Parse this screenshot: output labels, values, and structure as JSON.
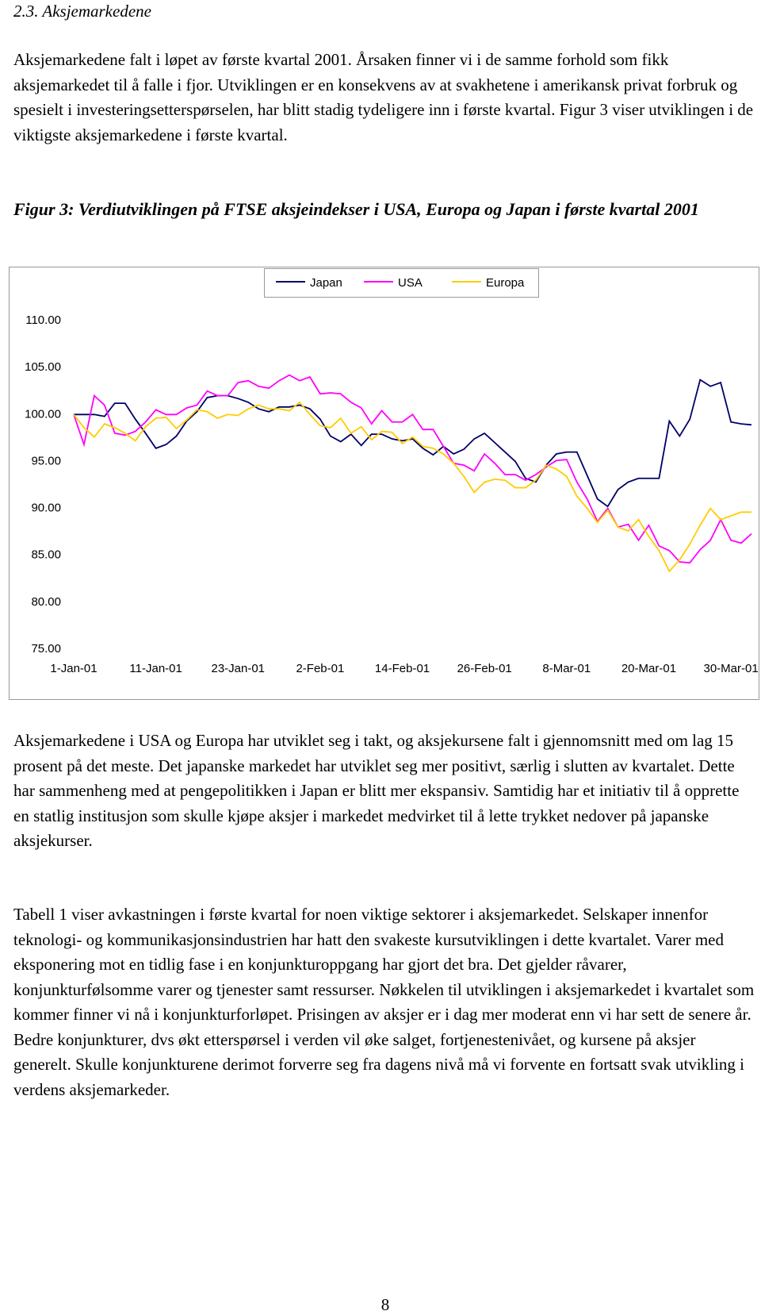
{
  "heading": "2.3. Aksjemarkedene",
  "paragraphs": [
    "Aksjemarkedene falt i løpet av første kvartal 2001. Årsaken finner vi i de samme forhold som fikk aksjemarkedet til å falle i fjor. Utviklingen er en konsekvens av at svakhetene i amerikansk privat forbruk og spesielt i investeringsetterspørselen, har blitt stadig tydeligere inn i første kvartal. Figur 3 viser utviklingen i de viktigste aksjemarkedene i første kvartal.",
    "Aksjemarkedene i USA og Europa har utviklet seg i takt, og aksjekursene falt i gjennomsnitt med om lag 15 prosent på det meste. Det japanske markedet har utviklet seg mer positivt, særlig i slutten av kvartalet. Dette har sammenheng med at pengepolitikken i Japan er blitt mer ekspansiv. Samtidig har et initiativ til å opprette en statlig institusjon som skulle kjøpe aksjer i markedet medvirket til å lette trykket nedover på japanske aksjekurser.",
    "Tabell 1 viser avkastningen i første kvartal for noen viktige sektorer i aksjemarkedet. Selskaper innenfor teknologi- og kommunikasjonsindustrien har hatt den svakeste kursutviklingen i dette kvartalet. Varer med eksponering mot en tidlig fase i en konjunkturoppgang har gjort det bra. Det gjelder råvarer, konjunkturfølsomme varer og tjenester samt ressurser. Nøkkelen til utviklingen i aksjemarkedet i kvartalet som kommer finner vi nå i konjunkturforløpet. Prisingen av aksjer er i dag mer moderat enn vi har sett de senere år. Bedre konjunkturer, dvs økt etterspørsel i verden vil øke salget, fortjenestenivået, og kursene på aksjer generelt. Skulle konjunkturene derimot forverre seg fra dagens nivå må vi forvente en fortsatt svak utvikling i verdens aksjemarkeder."
  ],
  "figure_caption": "Figur 3: Verdiutviklingen på FTSE aksjeindekser i USA, Europa og Japan i første kvartal 2001",
  "chart_data": {
    "type": "line",
    "categories": [
      "1-Jan-01",
      null,
      null,
      null,
      null,
      null,
      null,
      null,
      "11-Jan-01",
      null,
      null,
      null,
      null,
      null,
      null,
      null,
      "23-Jan-01",
      null,
      null,
      null,
      null,
      null,
      null,
      null,
      "2-Feb-01",
      null,
      null,
      null,
      null,
      null,
      null,
      null,
      "14-Feb-01",
      null,
      null,
      null,
      null,
      null,
      null,
      null,
      "26-Feb-01",
      null,
      null,
      null,
      null,
      null,
      null,
      null,
      "8-Mar-01",
      null,
      null,
      null,
      null,
      null,
      null,
      null,
      "20-Mar-01",
      null,
      null,
      null,
      null,
      null,
      null,
      null,
      "30-Mar-01",
      null,
      null
    ],
    "series": [
      {
        "name": "Japan",
        "color": "#000066",
        "values": [
          100,
          100,
          100,
          99.8,
          101.2,
          101.2,
          99.5,
          98,
          96.4,
          96.8,
          97.7,
          99.3,
          100.3,
          101.8,
          102,
          102,
          101.7,
          101.3,
          100.6,
          100.3,
          100.8,
          100.8,
          101,
          100.6,
          99.5,
          97.7,
          97.1,
          97.9,
          96.7,
          97.9,
          97.9,
          97.4,
          97.2,
          97.4,
          96.4,
          95.7,
          96.6,
          95.8,
          96.3,
          97.4,
          98,
          97,
          96,
          95,
          93.2,
          92.8,
          94.6,
          95.8,
          96,
          96,
          93.5,
          91,
          90.2,
          92,
          92.8,
          93.2,
          93.2,
          93.2,
          99.3,
          97.7,
          99.5,
          103.7,
          103,
          103.4,
          99.2,
          99,
          98.9
        ]
      },
      {
        "name": "USA",
        "color": "#ff00ff",
        "values": [
          100,
          96.8,
          102,
          101,
          98,
          97.8,
          98.2,
          99.2,
          100.5,
          100,
          100,
          100.7,
          101,
          102.5,
          102,
          102,
          103.4,
          103.6,
          103,
          102.8,
          103.6,
          104.2,
          103.6,
          104,
          102.2,
          102.3,
          102.2,
          101.3,
          100.7,
          99,
          100.4,
          99.2,
          99.2,
          100,
          98.4,
          98.4,
          96.6,
          94.8,
          94.6,
          94,
          95.8,
          94.8,
          93.6,
          93.6,
          93,
          93.6,
          94.4,
          95.1,
          95.2,
          92.8,
          91,
          88.6,
          90,
          88,
          88.3,
          86.6,
          88.2,
          86,
          85.5,
          84.3,
          84.2,
          85.6,
          86.6,
          88.8,
          86.6,
          86.3,
          87.3
        ]
      },
      {
        "name": "Europa",
        "color": "#ffcc00",
        "values": [
          100,
          98.6,
          97.6,
          99,
          98.6,
          98,
          97.2,
          98.7,
          99.6,
          99.7,
          98.5,
          99.4,
          100.5,
          100.3,
          99.6,
          100,
          99.9,
          100.6,
          101,
          100.6,
          100.6,
          100.4,
          101.3,
          100,
          98.8,
          98.6,
          99.6,
          98,
          98.7,
          97.3,
          98.2,
          98.1,
          96.9,
          97.6,
          96.6,
          96.4,
          95.8,
          94.8,
          93.4,
          91.7,
          92.8,
          93.1,
          93,
          92.2,
          92.2,
          93,
          94.6,
          94.2,
          93.4,
          91.3,
          90,
          88.5,
          89.8,
          88,
          87.6,
          88.8,
          87,
          85.5,
          83.3,
          84.5,
          86.2,
          88.2,
          90,
          88.8,
          89.2,
          89.6,
          89.6
        ]
      }
    ],
    "ylim": [
      75,
      110
    ],
    "yticks": [
      {
        "value": 75,
        "label": "75.00"
      },
      {
        "value": 80,
        "label": "80.00"
      },
      {
        "value": 85,
        "label": "85.00"
      },
      {
        "value": 90,
        "label": "90.00"
      },
      {
        "value": 95,
        "label": "95.00"
      },
      {
        "value": 100,
        "label": "100.00"
      },
      {
        "value": 105,
        "label": "105.00"
      },
      {
        "value": 110,
        "label": "110.00"
      }
    ],
    "grid": false,
    "legend": "top"
  },
  "page_number": "8"
}
